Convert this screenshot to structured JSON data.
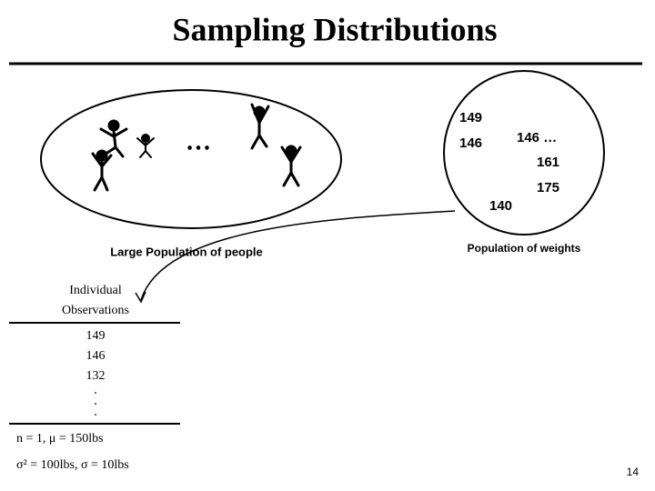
{
  "title": "Sampling Distributions",
  "population": {
    "ellipsis": "…",
    "label": "Large Population of people"
  },
  "weights": {
    "label": "Population of weights",
    "numbers": [
      "149",
      "146",
      "146 …",
      "161",
      "175",
      "140"
    ]
  },
  "table": {
    "header": [
      "Individual",
      "Observations"
    ],
    "rows": [
      "149",
      "146",
      "132"
    ]
  },
  "notes": [
    "n = 1, μ = 150lbs",
    "σ² = 100lbs, σ = 10lbs"
  ],
  "page_number": "14"
}
